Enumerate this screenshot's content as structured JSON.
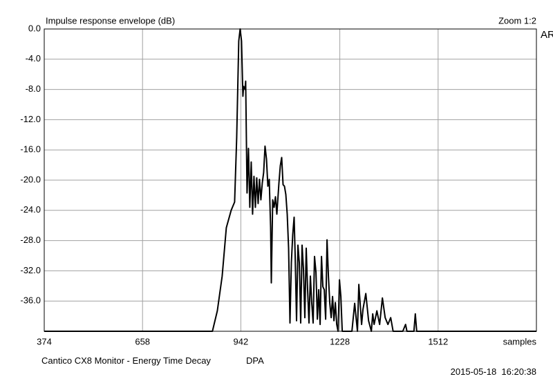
{
  "chart_data": {
    "type": "line",
    "title": "Impulse response envelope (dB)",
    "x_label": "samples",
    "annotations": [
      "Zoom 1:2",
      "ARTA",
      "Cantico CX8 Monitor - Energy Time Decay",
      "DPA",
      "2015-05-18  16:20:38"
    ],
    "x": [
      374,
      860,
      874,
      888,
      900,
      914,
      924,
      930,
      936,
      940,
      944,
      948,
      950,
      954,
      956,
      960,
      964,
      968,
      972,
      976,
      980,
      984,
      988,
      992,
      996,
      1000,
      1004,
      1008,
      1012,
      1016,
      1020,
      1024,
      1028,
      1030,
      1034,
      1038,
      1042,
      1046,
      1052,
      1056,
      1060,
      1064,
      1068,
      1072,
      1076,
      1080,
      1084,
      1088,
      1092,
      1096,
      1099,
      1103,
      1107,
      1111,
      1115,
      1119,
      1123,
      1127,
      1131,
      1135,
      1139,
      1143,
      1147,
      1151,
      1155,
      1159,
      1163,
      1167,
      1171,
      1175,
      1179,
      1183,
      1187,
      1191,
      1195,
      1199,
      1203,
      1207,
      1211,
      1215,
      1219,
      1223,
      1227,
      1231,
      1235,
      1263,
      1271,
      1279,
      1283,
      1291,
      1295,
      1303,
      1311,
      1319,
      1323,
      1327,
      1335,
      1343,
      1351,
      1359,
      1367,
      1375,
      1382,
      1410,
      1418,
      1422,
      1442,
      1446,
      1450,
      1796
    ],
    "series": [
      {
        "color": "#000000",
        "values": [
          -40,
          -40,
          -37.3,
          -32.7,
          -26.3,
          -24.0,
          -22.9,
          -14.4,
          -1.6,
          0,
          -1.6,
          -8.9,
          -7.6,
          -8.0,
          -6.9,
          -21.7,
          -15.8,
          -23.6,
          -17.6,
          -24.5,
          -19.5,
          -23.6,
          -19.7,
          -23.1,
          -19.9,
          -22.6,
          -20.4,
          -19.0,
          -15.5,
          -17.2,
          -20.8,
          -19.9,
          -26.3,
          -33.6,
          -22.6,
          -23.6,
          -22.2,
          -24.5,
          -20.4,
          -18.1,
          -17.0,
          -20.6,
          -20.8,
          -21.9,
          -24.5,
          -29.0,
          -38.9,
          -30.9,
          -27.2,
          -24.9,
          -30.0,
          -38.6,
          -28.6,
          -30.9,
          -38.9,
          -28.6,
          -31.8,
          -38.2,
          -29.0,
          -34.5,
          -38.9,
          -32.7,
          -36.3,
          -38.9,
          -30.1,
          -32.2,
          -38.4,
          -34.5,
          -39.1,
          -30.1,
          -34.1,
          -34.5,
          -38.4,
          -27.9,
          -32.7,
          -36.3,
          -38.2,
          -35.4,
          -38.6,
          -36.2,
          -39.1,
          -40,
          -33.2,
          -35.4,
          -40,
          -40,
          -36.3,
          -40,
          -33.8,
          -39.1,
          -37.1,
          -35.0,
          -38.6,
          -40,
          -37.7,
          -39.1,
          -37.3,
          -39.1,
          -35.6,
          -38.2,
          -39.1,
          -38.2,
          -40,
          -40,
          -39.1,
          -40,
          -40,
          -37.7,
          -40,
          -40
        ]
      }
    ],
    "xlim": [
      374,
      1796
    ],
    "ylim": [
      -40,
      0
    ],
    "xticks": [
      374,
      658,
      942,
      1228,
      1512
    ],
    "yticks": [
      {
        "value": 0,
        "label": "0.0"
      },
      {
        "value": -4,
        "label": "-4.0"
      },
      {
        "value": -8,
        "label": "-8.0"
      },
      {
        "value": -12,
        "label": "-12.0"
      },
      {
        "value": -16,
        "label": "-16.0"
      },
      {
        "value": -20,
        "label": "-20.0"
      },
      {
        "value": -24,
        "label": "-24.0"
      },
      {
        "value": -28,
        "label": "-28.0"
      },
      {
        "value": -32,
        "label": "-32.0"
      },
      {
        "value": -36,
        "label": "-36.0"
      }
    ],
    "grid": true
  }
}
